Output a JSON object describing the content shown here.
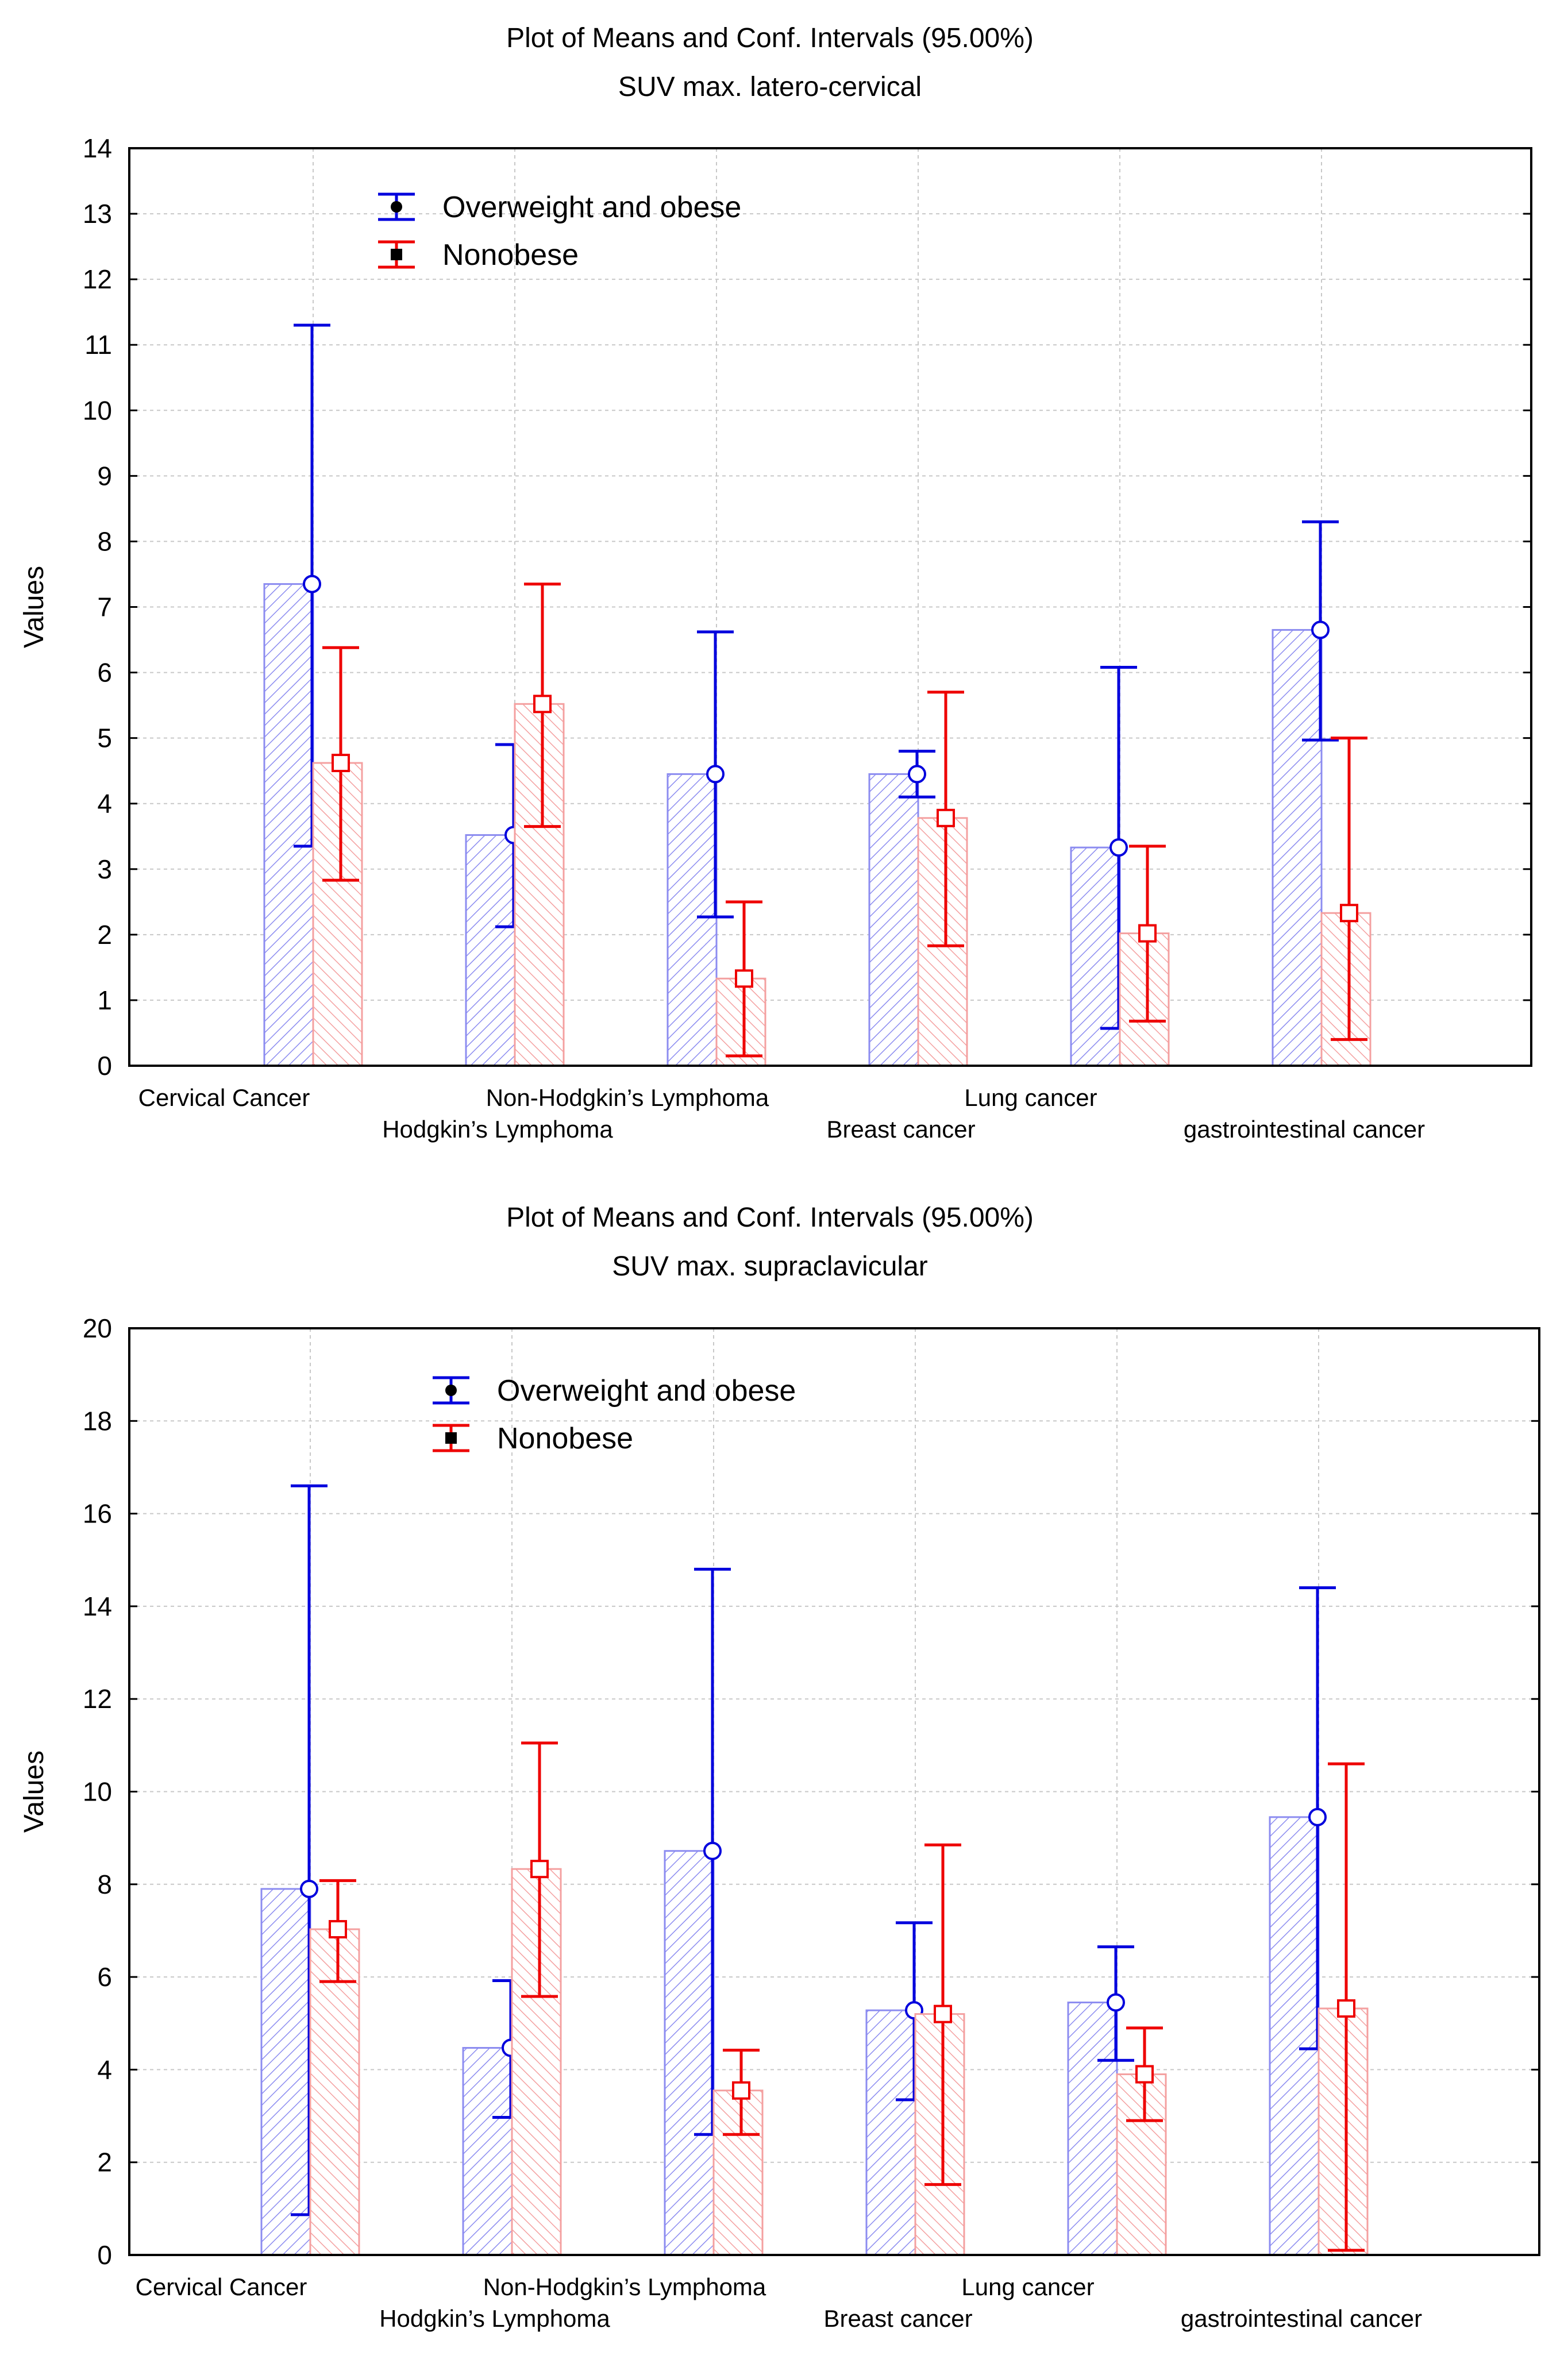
{
  "chart_data": [
    {
      "type": "bar",
      "title": "Plot of Means and Conf. Intervals (95.00%)",
      "subtitle": "SUV max. latero-cervical",
      "xlabel": "",
      "ylabel": "Values",
      "ylim": [
        0,
        14
      ],
      "yticks": [
        0,
        1,
        2,
        3,
        4,
        5,
        6,
        7,
        8,
        9,
        10,
        11,
        12,
        13,
        14
      ],
      "grid": true,
      "legend_position": "top-left",
      "categories": [
        "Cervical Cancer",
        "Hodgkin’s Lymphoma",
        "Non-Hodgkin’s Lymphoma",
        "Breast cancer",
        "Lung cancer",
        "gastrointestinal cancer"
      ],
      "series": [
        {
          "name": "Overweight and obese",
          "color": "#0000dd",
          "bar_color": "#8c8cf0",
          "values": [
            7.35,
            3.52,
            4.45,
            4.45,
            3.33,
            6.65
          ],
          "lower": [
            3.35,
            2.12,
            2.27,
            4.1,
            0.57,
            4.97
          ],
          "upper": [
            11.3,
            4.9,
            6.62,
            4.8,
            6.08,
            8.3
          ]
        },
        {
          "name": "Nonobese",
          "color": "#ee0000",
          "bar_color": "#f4a0a0",
          "values": [
            4.62,
            5.52,
            1.33,
            3.78,
            2.02,
            2.33
          ],
          "lower": [
            2.83,
            3.65,
            0.15,
            1.83,
            0.68,
            0.4
          ],
          "upper": [
            6.38,
            7.35,
            2.5,
            5.7,
            3.35,
            5.0
          ]
        }
      ]
    },
    {
      "type": "bar",
      "title": "Plot of Means and Conf. Intervals (95.00%)",
      "subtitle": "SUV max. supraclavicular",
      "xlabel": "",
      "ylabel": "Values",
      "ylim": [
        0,
        20
      ],
      "yticks": [
        0,
        2,
        4,
        6,
        8,
        10,
        12,
        14,
        16,
        18,
        20
      ],
      "grid": true,
      "legend_position": "top-left",
      "categories": [
        "Cervical Cancer",
        "Hodgkin’s Lymphoma",
        "Non-Hodgkin’s Lymphoma",
        "Breast cancer",
        "Lung cancer",
        "gastrointestinal cancer"
      ],
      "series": [
        {
          "name": "Overweight and obese",
          "color": "#0000dd",
          "bar_color": "#8c8cf0",
          "values": [
            7.9,
            4.47,
            8.72,
            5.28,
            5.45,
            9.45
          ],
          "lower": [
            0.87,
            2.97,
            2.6,
            3.35,
            4.2,
            4.45
          ],
          "upper": [
            16.6,
            5.92,
            14.8,
            7.17,
            6.65,
            14.4
          ]
        },
        {
          "name": "Nonobese",
          "color": "#ee0000",
          "bar_color": "#f4a0a0",
          "values": [
            7.03,
            8.33,
            3.55,
            5.2,
            3.9,
            5.32
          ],
          "lower": [
            5.9,
            5.58,
            2.6,
            1.52,
            2.9,
            0.1
          ],
          "upper": [
            8.08,
            11.05,
            4.42,
            8.85,
            4.9,
            10.6
          ]
        }
      ]
    }
  ]
}
